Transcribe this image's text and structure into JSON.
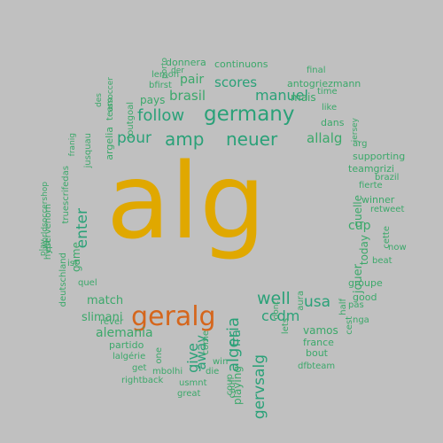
{
  "colors": {
    "background": "#c0c0c0",
    "gold": "#e0a800",
    "orange": "#d5661c",
    "teal": "#2aa178",
    "green": "#3ba86a",
    "pale": "#9cd9b8"
  },
  "words": [
    {
      "text": "alg",
      "color": "gold",
      "orientation": "horizontal"
    },
    {
      "text": "geralg",
      "color": "orange",
      "orientation": "horizontal"
    },
    {
      "text": "germany",
      "color": "teal",
      "orientation": "horizontal"
    },
    {
      "text": "neuer",
      "color": "teal",
      "orientation": "horizontal"
    },
    {
      "text": "amp",
      "color": "teal",
      "orientation": "horizontal"
    },
    {
      "text": "follow",
      "color": "teal",
      "orientation": "horizontal"
    },
    {
      "text": "pour",
      "color": "teal",
      "orientation": "horizontal"
    },
    {
      "text": "algeria",
      "color": "teal",
      "orientation": "vertical"
    },
    {
      "text": "gervsalg",
      "color": "teal",
      "orientation": "vertical"
    },
    {
      "text": "well",
      "color": "teal",
      "orientation": "horizontal"
    },
    {
      "text": "usa",
      "color": "teal",
      "orientation": "horizontal"
    },
    {
      "text": "ccdm",
      "color": "teal",
      "orientation": "horizontal"
    },
    {
      "text": "manuel",
      "color": "teal",
      "orientation": "horizontal"
    },
    {
      "text": "scores",
      "color": "teal",
      "orientation": "horizontal"
    },
    {
      "text": "brasil",
      "color": "green",
      "orientation": "horizontal"
    },
    {
      "text": "pair",
      "color": "green",
      "orientation": "horizontal"
    },
    {
      "text": "allalg",
      "color": "green",
      "orientation": "horizontal"
    },
    {
      "text": "enter",
      "color": "teal",
      "orientation": "vertical"
    },
    {
      "text": "give",
      "color": "teal",
      "orientation": "vertical"
    },
    {
      "text": "away",
      "color": "teal",
      "orientation": "vertical"
    },
    {
      "text": "fra",
      "color": "teal",
      "orientation": "vertical"
    },
    {
      "text": "playing",
      "color": "green",
      "orientation": "vertical"
    },
    {
      "text": "alemania",
      "color": "green",
      "orientation": "horizontal"
    },
    {
      "text": "slimani",
      "color": "green",
      "orientation": "horizontal"
    },
    {
      "text": "match",
      "color": "green",
      "orientation": "horizontal"
    },
    {
      "text": "cup",
      "color": "green",
      "orientation": "horizontal"
    },
    {
      "text": "jouer",
      "color": "green",
      "orientation": "vertical"
    },
    {
      "text": "quelle",
      "color": "green",
      "orientation": "vertical"
    },
    {
      "text": "game",
      "color": "green",
      "orientation": "vertical"
    },
    {
      "text": "pays",
      "color": "green",
      "orientation": "horizontal"
    },
    {
      "text": "dans",
      "color": "green",
      "orientation": "horizontal"
    },
    {
      "text": "mais",
      "color": "green",
      "orientation": "horizontal"
    },
    {
      "text": "continuons",
      "color": "green",
      "orientation": "horizontal"
    },
    {
      "text": "donnera",
      "color": "green",
      "orientation": "horizontal"
    },
    {
      "text": "antogriezmann",
      "color": "green",
      "orientation": "horizontal"
    },
    {
      "text": "final",
      "color": "green",
      "orientation": "horizontal"
    },
    {
      "text": "time",
      "color": "green",
      "orientation": "horizontal"
    },
    {
      "text": "like",
      "color": "green",
      "orientation": "horizontal"
    },
    {
      "text": "arg",
      "color": "green",
      "orientation": "horizontal"
    },
    {
      "text": "supporting",
      "color": "green",
      "orientation": "horizontal"
    },
    {
      "text": "teamgrizi",
      "color": "green",
      "orientation": "horizontal"
    },
    {
      "text": "brazil",
      "color": "green",
      "orientation": "horizontal"
    },
    {
      "text": "fierte",
      "color": "green",
      "orientation": "horizontal"
    },
    {
      "text": "winner",
      "color": "green",
      "orientation": "horizontal"
    },
    {
      "text": "retweet",
      "color": "green",
      "orientation": "horizontal"
    },
    {
      "text": "cette",
      "color": "green",
      "orientation": "vertical"
    },
    {
      "text": "now",
      "color": "green",
      "orientation": "horizontal"
    },
    {
      "text": "beat",
      "color": "green",
      "orientation": "horizontal"
    },
    {
      "text": "today",
      "color": "green",
      "orientation": "vertical"
    },
    {
      "text": "groupe",
      "color": "green",
      "orientation": "horizontal"
    },
    {
      "text": "good",
      "color": "green",
      "orientation": "horizontal"
    },
    {
      "text": "pas",
      "color": "green",
      "orientation": "horizontal"
    },
    {
      "text": "half",
      "color": "green",
      "orientation": "vertical"
    },
    {
      "text": "cest",
      "color": "green",
      "orientation": "vertical"
    },
    {
      "text": "nga",
      "color": "green",
      "orientation": "horizontal"
    },
    {
      "text": "vamos",
      "color": "green",
      "orientation": "horizontal"
    },
    {
      "text": "france",
      "color": "green",
      "orientation": "horizontal"
    },
    {
      "text": "bout",
      "color": "green",
      "orientation": "horizontal"
    },
    {
      "text": "dfbteam",
      "color": "green",
      "orientation": "horizontal"
    },
    {
      "text": "lets",
      "color": "green",
      "orientation": "vertical"
    },
    {
      "text": "aura",
      "color": "green",
      "orientation": "vertical"
    },
    {
      "text": "win",
      "color": "green",
      "orientation": "horizontal"
    },
    {
      "text": "die",
      "color": "green",
      "orientation": "horizontal"
    },
    {
      "text": "one",
      "color": "green",
      "orientation": "vertical"
    },
    {
      "text": "come",
      "color": "green",
      "orientation": "vertical"
    },
    {
      "text": "coup",
      "color": "green",
      "orientation": "vertical"
    },
    {
      "text": "cauf",
      "color": "green",
      "orientation": "vertical"
    },
    {
      "text": "usmnt",
      "color": "green",
      "orientation": "horizontal"
    },
    {
      "text": "great",
      "color": "green",
      "orientation": "horizontal"
    },
    {
      "text": "rightback",
      "color": "green",
      "orientation": "horizontal"
    },
    {
      "text": "mbolhi",
      "color": "green",
      "orientation": "horizontal"
    },
    {
      "text": "get",
      "color": "green",
      "orientation": "horizontal"
    },
    {
      "text": "lalgérie",
      "color": "green",
      "orientation": "horizontal"
    },
    {
      "text": "partido",
      "color": "green",
      "orientation": "horizontal"
    },
    {
      "text": "rêver",
      "color": "green",
      "orientation": "horizontal"
    },
    {
      "text": "quel",
      "color": "green",
      "orientation": "horizontal"
    },
    {
      "text": "ist",
      "color": "green",
      "orientation": "horizontal"
    },
    {
      "text": "deutschland",
      "color": "green",
      "orientation": "vertical"
    },
    {
      "text": "est",
      "color": "green",
      "orientation": "vertical"
    },
    {
      "text": "play",
      "color": "green",
      "orientation": "vertical"
    },
    {
      "text": "hypervenom",
      "color": "green",
      "orientation": "vertical"
    },
    {
      "text": "worldsoccershop",
      "color": "green",
      "orientation": "vertical"
    },
    {
      "text": "truescrifedas",
      "color": "green",
      "orientation": "vertical"
    },
    {
      "text": "jusquau",
      "color": "green",
      "orientation": "vertical"
    },
    {
      "text": "franig",
      "color": "green",
      "orientation": "vertical"
    },
    {
      "text": "argelia",
      "color": "green",
      "orientation": "vertical"
    },
    {
      "text": "toutgoal",
      "color": "green",
      "orientation": "vertical"
    },
    {
      "text": "team",
      "color": "green",
      "orientation": "vertical"
    },
    {
      "text": "des",
      "color": "green",
      "orientation": "vertical"
    },
    {
      "text": "ussoccer",
      "color": "green",
      "orientation": "vertical"
    },
    {
      "text": "bfirst",
      "color": "green",
      "orientation": "horizontal"
    },
    {
      "text": "lemon",
      "color": "green",
      "orientation": "horizontal"
    },
    {
      "text": "der",
      "color": "green",
      "orientation": "horizontal"
    },
    {
      "text": "porto",
      "color": "green",
      "orientation": "vertical"
    },
    {
      "text": "jersey",
      "color": "green",
      "orientation": "vertical"
    },
    {
      "text": "dont",
      "color": "green",
      "orientation": "vertical"
    }
  ]
}
